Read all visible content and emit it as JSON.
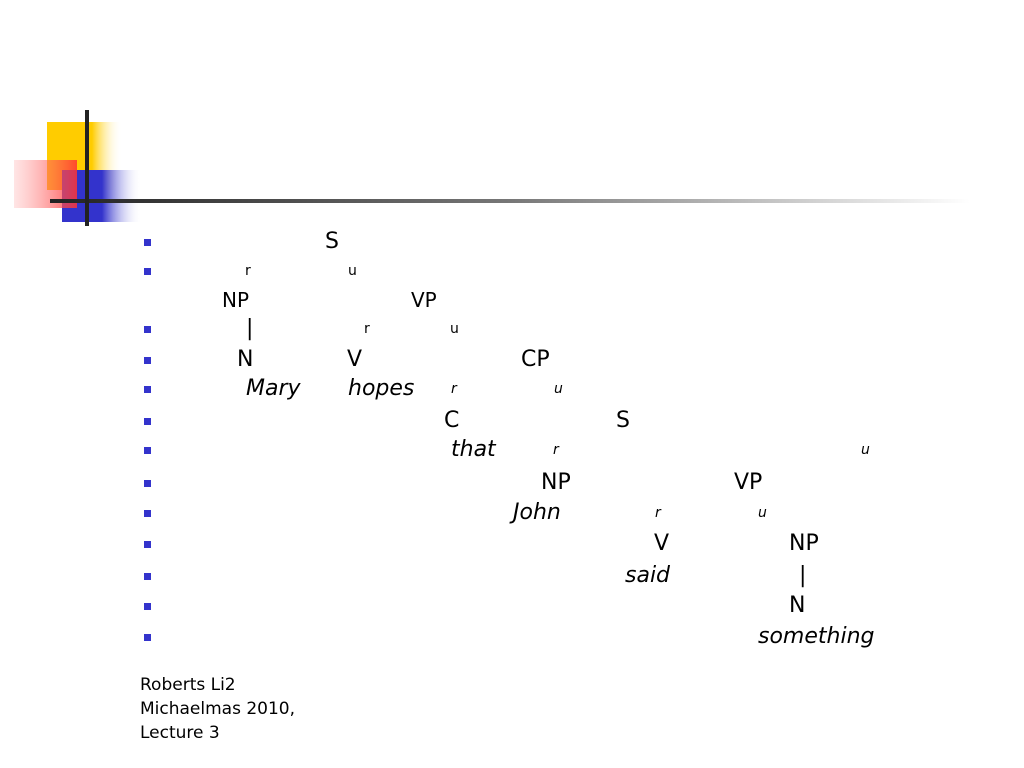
{
  "tree_lines": [
    {
      "bullet": true,
      "items": [
        {
          "text": "S"
        }
      ]
    },
    {
      "bullet": true,
      "items": [
        {
          "text": "r"
        },
        {
          "text": "u"
        }
      ]
    },
    {
      "bullet": false,
      "items": [
        {
          "text": "NP"
        },
        {
          "text": "VP"
        }
      ]
    },
    {
      "bullet": true,
      "items": [
        {
          "text": "|"
        },
        {
          "text": "r"
        },
        {
          "text": "u"
        }
      ]
    },
    {
      "bullet": true,
      "items": [
        {
          "text": "N"
        },
        {
          "text": "V"
        },
        {
          "text": "CP"
        }
      ]
    },
    {
      "bullet": true,
      "items": [
        {
          "text": "Mary"
        },
        {
          "text": "hopes"
        },
        {
          "text": "r"
        },
        {
          "text": "u"
        }
      ]
    },
    {
      "bullet": true,
      "items": [
        {
          "text": "C"
        },
        {
          "text": "S"
        }
      ]
    },
    {
      "bullet": true,
      "items": [
        {
          "text": "that"
        },
        {
          "text": "r"
        },
        {
          "text": "u"
        }
      ]
    },
    {
      "bullet": true,
      "items": [
        {
          "text": "NP"
        },
        {
          "text": "VP"
        }
      ]
    },
    {
      "bullet": true,
      "items": [
        {
          "text": "John"
        },
        {
          "text": "r"
        },
        {
          "text": "u"
        }
      ]
    },
    {
      "bullet": true,
      "items": [
        {
          "text": "V"
        },
        {
          "text": "NP"
        }
      ]
    },
    {
      "bullet": true,
      "items": [
        {
          "text": "said"
        },
        {
          "text": "|"
        }
      ]
    },
    {
      "bullet": true,
      "items": [
        {
          "text": "N"
        }
      ]
    },
    {
      "bullet": true,
      "items": [
        {
          "text": "something"
        }
      ]
    }
  ],
  "footer": [
    "Roberts Li2",
    "Michaelmas 2010,",
    "Lecture 3"
  ]
}
